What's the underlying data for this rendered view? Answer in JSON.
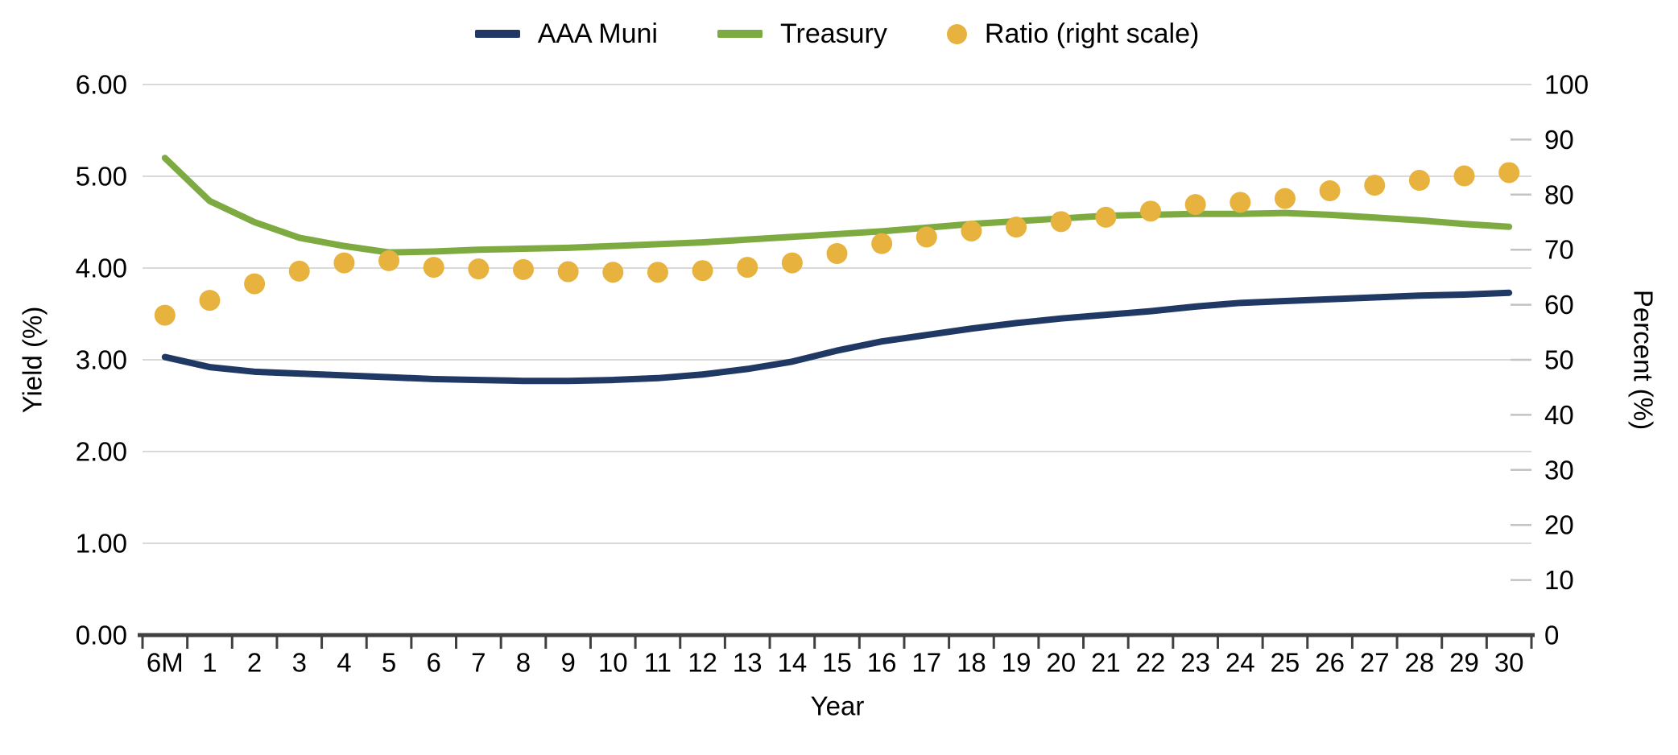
{
  "chart_data": {
    "type": "line",
    "title": "",
    "legend_position": "top",
    "grid": "horizontal",
    "categories": [
      "6M",
      "1",
      "2",
      "3",
      "4",
      "5",
      "6",
      "7",
      "8",
      "9",
      "10",
      "11",
      "12",
      "13",
      "14",
      "15",
      "16",
      "17",
      "18",
      "19",
      "20",
      "21",
      "22",
      "23",
      "24",
      "25",
      "26",
      "27",
      "28",
      "29",
      "30"
    ],
    "series": [
      {
        "name": "AAA Muni",
        "type": "line",
        "axis": "left",
        "color": "#203864",
        "values": [
          3.03,
          2.92,
          2.87,
          2.85,
          2.83,
          2.81,
          2.79,
          2.78,
          2.77,
          2.77,
          2.78,
          2.8,
          2.84,
          2.9,
          2.98,
          3.1,
          3.2,
          3.27,
          3.34,
          3.4,
          3.45,
          3.49,
          3.53,
          3.58,
          3.62,
          3.64,
          3.66,
          3.68,
          3.7,
          3.71,
          3.73
        ]
      },
      {
        "name": "Treasury",
        "type": "line",
        "axis": "left",
        "color": "#7eab41",
        "values": [
          5.2,
          4.73,
          4.5,
          4.33,
          4.24,
          4.17,
          4.18,
          4.2,
          4.21,
          4.22,
          4.24,
          4.26,
          4.28,
          4.31,
          4.34,
          4.37,
          4.4,
          4.44,
          4.48,
          4.51,
          4.54,
          4.57,
          4.58,
          4.59,
          4.59,
          4.6,
          4.58,
          4.55,
          4.52,
          4.48,
          4.45
        ]
      },
      {
        "name": "Ratio (right scale)",
        "type": "scatter",
        "axis": "right",
        "color": "#e7b23e",
        "values": [
          58.1,
          60.8,
          63.8,
          66.1,
          67.6,
          68.0,
          66.8,
          66.5,
          66.4,
          66.0,
          65.9,
          65.9,
          66.2,
          66.8,
          67.6,
          69.3,
          71.1,
          72.3,
          73.4,
          74.1,
          75.1,
          75.9,
          77.0,
          78.2,
          78.6,
          79.3,
          80.7,
          81.7,
          82.6,
          83.4,
          84.0
        ]
      }
    ],
    "x_axis": {
      "title": "Year",
      "tick_labels": [
        "6M",
        "1",
        "2",
        "3",
        "4",
        "5",
        "6",
        "7",
        "8",
        "9",
        "10",
        "11",
        "12",
        "13",
        "14",
        "15",
        "16",
        "17",
        "18",
        "19",
        "20",
        "21",
        "22",
        "23",
        "24",
        "25",
        "26",
        "27",
        "28",
        "29",
        "30"
      ]
    },
    "y_axis_left": {
      "title": "Yield (%)",
      "min": 0,
      "max": 6,
      "ticks": [
        0,
        1,
        2,
        3,
        4,
        5,
        6
      ],
      "tick_labels": [
        "0.00",
        "1.00",
        "2.00",
        "3.00",
        "4.00",
        "5.00",
        "6.00"
      ]
    },
    "y_axis_right": {
      "title": "Percent (%)",
      "min": 0,
      "max": 100,
      "ticks": [
        0,
        10,
        20,
        30,
        40,
        50,
        60,
        70,
        80,
        90,
        100
      ],
      "tick_labels": [
        "0",
        "10",
        "20",
        "30",
        "40",
        "50",
        "60",
        "70",
        "80",
        "90",
        "100"
      ]
    }
  },
  "styles": {
    "background": "#ffffff",
    "gridline_color": "#d9d9d9",
    "axis_line_color": "#404040",
    "x_tick_color": "#404040",
    "right_tick_color": "#c3c3c3",
    "text_color": "#000000"
  }
}
